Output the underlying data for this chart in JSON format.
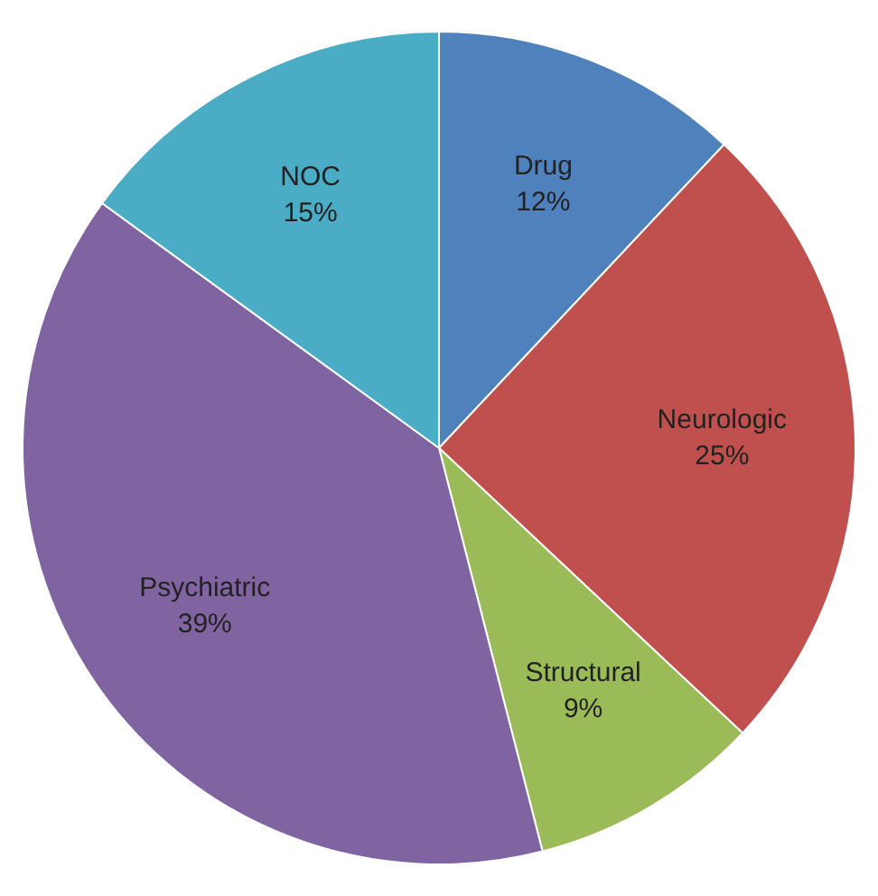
{
  "chart_data": {
    "type": "pie",
    "categories": [
      "Drug",
      "Neurologic",
      "Structural",
      "Psychiatric",
      "NOC"
    ],
    "values": [
      12,
      25,
      9,
      39,
      15
    ],
    "colors": [
      "#4f81bd",
      "#c0504d",
      "#9bbb59",
      "#8064a2",
      "#4bacc6"
    ],
    "value_labels": [
      "12%",
      "25%",
      "9%",
      "39%",
      "15%"
    ],
    "legend": false
  }
}
